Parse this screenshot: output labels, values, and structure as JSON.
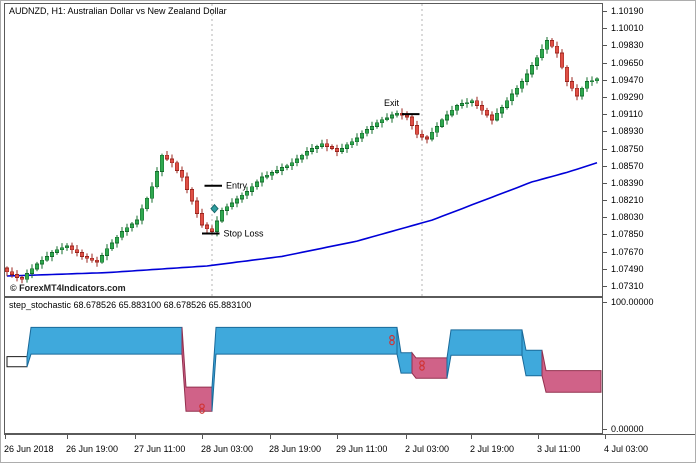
{
  "window": {
    "symbol_header": "AUDNZD, H1:  Australian Dollar vs New Zealand Dollar",
    "watermark": "© ForexMT4Indicators.com"
  },
  "indicator": {
    "header": "step_stochastic 68.678526 65.883100 68.678526 65.883100"
  },
  "price_axis": [
    "1.10190",
    "1.10010",
    "1.09830",
    "1.09650",
    "1.09470",
    "1.09290",
    "1.09110",
    "1.08930",
    "1.08750",
    "1.08570",
    "1.08390",
    "1.08210",
    "1.08030",
    "1.07850",
    "1.07670",
    "1.07490",
    "1.07310"
  ],
  "indicator_axis": [
    "100.00000",
    "0.00000"
  ],
  "time_axis": [
    "26 Jun 2018",
    "26 Jun 19:00",
    "27 Jun 11:00",
    "28 Jun 03:00",
    "28 Jun 19:00",
    "29 Jun 11:00",
    "2 Jul 03:00",
    "2 Jul 19:00",
    "3 Jul 11:00",
    "4 Jul 03:00"
  ],
  "theme": {
    "up_fill": "#2fa84f",
    "up_stroke": "#156c2d",
    "down_fill": "#df5046",
    "down_stroke": "#99241d",
    "ma_line": "#0000d8",
    "ind_blue_fill": "#3fa9dc",
    "ind_blue_stroke": "#1a6a9a",
    "ind_pink_fill": "#d06288",
    "ind_pink_stroke": "#93304f",
    "marker": "#d03333",
    "annotation": "#000000"
  },
  "chart_data": [
    {
      "type": "candlestick",
      "title": "AUDNZD H1",
      "ylim": [
        1.0731,
        1.1019
      ],
      "bars": 119,
      "closes": [
        1.0746,
        1.0743,
        1.074,
        1.0738,
        1.0744,
        1.0749,
        1.0754,
        1.0758,
        1.0762,
        1.0766,
        1.0769,
        1.0771,
        1.0773,
        1.0769,
        1.0766,
        1.0762,
        1.076,
        1.0758,
        1.0756,
        1.0763,
        1.077,
        1.0776,
        1.0782,
        1.0788,
        1.0792,
        1.0796,
        1.08,
        1.0812,
        1.0823,
        1.0835,
        1.0851,
        1.0868,
        1.0864,
        1.086,
        1.0852,
        1.0845,
        1.0832,
        1.082,
        1.0807,
        1.0795,
        1.0791,
        1.0788,
        1.0799,
        1.081,
        1.0814,
        1.0818,
        1.0822,
        1.0826,
        1.083,
        1.0835,
        1.084,
        1.0845,
        1.0847,
        1.085,
        1.0852,
        1.0855,
        1.0857,
        1.086,
        1.0864,
        1.0868,
        1.0872,
        1.0875,
        1.0877,
        1.088,
        1.0877,
        1.0875,
        1.0872,
        1.0875,
        1.0879,
        1.0882,
        1.0886,
        1.0891,
        1.0895,
        1.0898,
        1.0902,
        1.0905,
        1.0907,
        1.091,
        1.0912,
        1.091,
        1.0908,
        1.0899,
        1.089,
        1.0887,
        1.0885,
        1.0892,
        1.0898,
        1.0905,
        1.091,
        1.0915,
        1.092,
        1.0922,
        1.0923,
        1.0925,
        1.092,
        1.0915,
        1.091,
        1.0905,
        1.0912,
        1.0918,
        1.0925,
        1.0932,
        1.0938,
        1.0945,
        1.0953,
        1.0962,
        1.097,
        1.0979,
        1.0988,
        1.0982,
        1.0975,
        1.096,
        1.0945,
        1.0938,
        1.093,
        1.0938,
        1.0945,
        1.0946,
        1.0948
      ],
      "ma_points": [
        [
          0,
          1.07415
        ],
        [
          20,
          1.0745
        ],
        [
          40,
          1.0752
        ],
        [
          55,
          1.0762
        ],
        [
          70,
          1.0778
        ],
        [
          85,
          1.08
        ],
        [
          95,
          1.082
        ],
        [
          105,
          1.084
        ],
        [
          112,
          1.085
        ],
        [
          118,
          1.086
        ]
      ],
      "day_separator_bars": [
        41,
        83
      ],
      "annotations": [
        {
          "label": "Entry",
          "price": 1.0836,
          "bar_from": 39.5,
          "bar_to": 43,
          "label_pos": "right"
        },
        {
          "label": "Stop Loss",
          "price": 1.0786,
          "bar_from": 39,
          "bar_to": 42.5,
          "label_pos": "right"
        },
        {
          "label": "Exit",
          "price": 1.0911,
          "bar_from": 79,
          "bar_to": 82.5,
          "label_pos": "above"
        }
      ],
      "buy_marker": {
        "bar": 41.5,
        "price": 1.0812,
        "color": "#2f9ea0"
      }
    },
    {
      "type": "area",
      "name": "step_stochastic",
      "ylim": [
        0,
        100
      ],
      "current_values": [
        68.678526,
        65.8831,
        68.678526,
        65.8831
      ],
      "segments": [
        {
          "from": 0,
          "to": 4,
          "upper": 57,
          "lower": 49,
          "color": "dark"
        },
        {
          "from": 4,
          "to": 35,
          "upper": 80,
          "lower": 59,
          "color": "blue"
        },
        {
          "from": 35,
          "to": 41,
          "upper": 33,
          "lower": 14,
          "color": "pink"
        },
        {
          "from": 41,
          "to": 78,
          "upper": 80,
          "lower": 59,
          "color": "blue"
        },
        {
          "from": 78,
          "to": 81,
          "upper": 60,
          "lower": 44,
          "color": "blue"
        },
        {
          "from": 81,
          "to": 88,
          "upper": 56,
          "lower": 40,
          "color": "pink"
        },
        {
          "from": 88,
          "to": 103,
          "upper": 78,
          "lower": 58,
          "color": "blue"
        },
        {
          "from": 103,
          "to": 107,
          "upper": 62,
          "lower": 42,
          "color": "blue"
        },
        {
          "from": 107,
          "to": 118.8,
          "upper": 46,
          "lower": 29,
          "color": "pink"
        }
      ],
      "markers": [
        {
          "bar": 39,
          "value": 16
        },
        {
          "bar": 77,
          "value": 70
        },
        {
          "bar": 83,
          "value": 50
        }
      ]
    }
  ]
}
